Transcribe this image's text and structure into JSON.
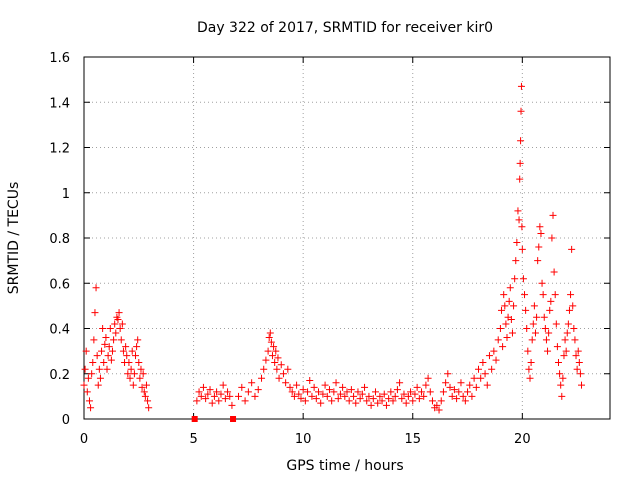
{
  "chart_data": {
    "type": "scatter",
    "title": "Day 322 of 2017, SRMTID for receiver kir0",
    "xlabel": "GPS time / hours",
    "ylabel": "SRMTID / TECUs",
    "xlim": [
      0,
      24
    ],
    "ylim": [
      0,
      1.6
    ],
    "grid": true,
    "xticks": [
      0,
      5,
      10,
      15,
      20
    ],
    "xtick_labels": [
      "0",
      "5",
      "10",
      "15",
      "20"
    ],
    "yticks": [
      0,
      0.2,
      0.4,
      0.6,
      0.8,
      1,
      1.2,
      1.4,
      1.6
    ],
    "ytick_labels": [
      "0",
      "0.2",
      "0.4",
      "0.6",
      "0.8",
      "1",
      "1.2",
      "1.4",
      "1.6"
    ],
    "marker": "plus",
    "color": "#ff0000",
    "series": [
      {
        "name": "SRMTID",
        "points": [
          [
            0.0,
            0.15
          ],
          [
            0.05,
            0.22
          ],
          [
            0.1,
            0.3
          ],
          [
            0.15,
            0.12
          ],
          [
            0.2,
            0.18
          ],
          [
            0.25,
            0.08
          ],
          [
            0.3,
            0.05
          ],
          [
            0.35,
            0.2
          ],
          [
            0.4,
            0.25
          ],
          [
            0.45,
            0.35
          ],
          [
            0.5,
            0.47
          ],
          [
            0.55,
            0.58
          ],
          [
            0.6,
            0.28
          ],
          [
            0.65,
            0.15
          ],
          [
            0.7,
            0.22
          ],
          [
            0.75,
            0.18
          ],
          [
            0.8,
            0.3
          ],
          [
            0.85,
            0.4
          ],
          [
            0.9,
            0.25
          ],
          [
            0.95,
            0.33
          ],
          [
            1.0,
            0.36
          ],
          [
            1.05,
            0.22
          ],
          [
            1.1,
            0.28
          ],
          [
            1.15,
            0.32
          ],
          [
            1.2,
            0.4
          ],
          [
            1.25,
            0.26
          ],
          [
            1.3,
            0.3
          ],
          [
            1.35,
            0.35
          ],
          [
            1.4,
            0.42
          ],
          [
            1.45,
            0.38
          ],
          [
            1.5,
            0.45
          ],
          [
            1.55,
            0.44
          ],
          [
            1.6,
            0.47
          ],
          [
            1.65,
            0.4
          ],
          [
            1.7,
            0.35
          ],
          [
            1.75,
            0.42
          ],
          [
            1.8,
            0.3
          ],
          [
            1.85,
            0.25
          ],
          [
            1.9,
            0.32
          ],
          [
            1.95,
            0.28
          ],
          [
            2.0,
            0.2
          ],
          [
            2.05,
            0.25
          ],
          [
            2.1,
            0.18
          ],
          [
            2.15,
            0.22
          ],
          [
            2.2,
            0.3
          ],
          [
            2.25,
            0.15
          ],
          [
            2.3,
            0.2
          ],
          [
            2.35,
            0.28
          ],
          [
            2.4,
            0.32
          ],
          [
            2.45,
            0.35
          ],
          [
            2.5,
            0.25
          ],
          [
            2.55,
            0.18
          ],
          [
            2.6,
            0.22
          ],
          [
            2.65,
            0.14
          ],
          [
            2.7,
            0.2
          ],
          [
            2.75,
            0.12
          ],
          [
            2.8,
            0.1
          ],
          [
            2.85,
            0.15
          ],
          [
            2.9,
            0.08
          ],
          [
            2.95,
            0.05
          ],
          [
            5.05,
            0.0
          ],
          [
            6.8,
            0.0
          ],
          [
            5.15,
            0.08
          ],
          [
            5.25,
            0.12
          ],
          [
            5.35,
            0.1
          ],
          [
            5.45,
            0.14
          ],
          [
            5.55,
            0.09
          ],
          [
            5.65,
            0.11
          ],
          [
            5.75,
            0.13
          ],
          [
            5.85,
            0.07
          ],
          [
            5.95,
            0.1
          ],
          [
            6.05,
            0.12
          ],
          [
            6.15,
            0.08
          ],
          [
            6.25,
            0.11
          ],
          [
            6.35,
            0.15
          ],
          [
            6.45,
            0.09
          ],
          [
            6.55,
            0.12
          ],
          [
            6.65,
            0.1
          ],
          [
            6.75,
            0.06
          ],
          [
            7.05,
            0.1
          ],
          [
            7.2,
            0.14
          ],
          [
            7.35,
            0.08
          ],
          [
            7.5,
            0.12
          ],
          [
            7.65,
            0.16
          ],
          [
            7.8,
            0.1
          ],
          [
            7.95,
            0.13
          ],
          [
            8.1,
            0.18
          ],
          [
            8.2,
            0.22
          ],
          [
            8.3,
            0.26
          ],
          [
            8.4,
            0.3
          ],
          [
            8.45,
            0.36
          ],
          [
            8.5,
            0.38
          ],
          [
            8.55,
            0.34
          ],
          [
            8.6,
            0.28
          ],
          [
            8.65,
            0.32
          ],
          [
            8.7,
            0.25
          ],
          [
            8.75,
            0.3
          ],
          [
            8.8,
            0.22
          ],
          [
            8.85,
            0.27
          ],
          [
            8.9,
            0.18
          ],
          [
            9.0,
            0.24
          ],
          [
            9.1,
            0.2
          ],
          [
            9.2,
            0.16
          ],
          [
            9.3,
            0.22
          ],
          [
            9.4,
            0.14
          ],
          [
            9.5,
            0.12
          ],
          [
            9.6,
            0.1
          ],
          [
            9.7,
            0.15
          ],
          [
            9.8,
            0.11
          ],
          [
            9.9,
            0.09
          ],
          [
            10.0,
            0.13
          ],
          [
            10.1,
            0.08
          ],
          [
            10.2,
            0.12
          ],
          [
            10.3,
            0.17
          ],
          [
            10.4,
            0.1
          ],
          [
            10.5,
            0.14
          ],
          [
            10.6,
            0.09
          ],
          [
            10.7,
            0.12
          ],
          [
            10.8,
            0.07
          ],
          [
            10.9,
            0.11
          ],
          [
            11.0,
            0.15
          ],
          [
            11.1,
            0.1
          ],
          [
            11.2,
            0.13
          ],
          [
            11.3,
            0.08
          ],
          [
            11.4,
            0.12
          ],
          [
            11.5,
            0.16
          ],
          [
            11.6,
            0.09
          ],
          [
            11.7,
            0.11
          ],
          [
            11.8,
            0.14
          ],
          [
            11.9,
            0.1
          ],
          [
            12.0,
            0.12
          ],
          [
            12.1,
            0.08
          ],
          [
            12.2,
            0.13
          ],
          [
            12.3,
            0.1
          ],
          [
            12.4,
            0.07
          ],
          [
            12.5,
            0.12
          ],
          [
            12.6,
            0.09
          ],
          [
            12.7,
            0.11
          ],
          [
            12.8,
            0.14
          ],
          [
            12.9,
            0.08
          ],
          [
            13.0,
            0.1
          ],
          [
            13.1,
            0.06
          ],
          [
            13.2,
            0.09
          ],
          [
            13.3,
            0.12
          ],
          [
            13.4,
            0.07
          ],
          [
            13.5,
            0.1
          ],
          [
            13.6,
            0.08
          ],
          [
            13.7,
            0.11
          ],
          [
            13.8,
            0.06
          ],
          [
            13.9,
            0.09
          ],
          [
            14.0,
            0.12
          ],
          [
            14.1,
            0.08
          ],
          [
            14.2,
            0.1
          ],
          [
            14.3,
            0.13
          ],
          [
            14.4,
            0.16
          ],
          [
            14.5,
            0.09
          ],
          [
            14.6,
            0.11
          ],
          [
            14.7,
            0.07
          ],
          [
            14.8,
            0.1
          ],
          [
            14.9,
            0.12
          ],
          [
            15.0,
            0.08
          ],
          [
            15.1,
            0.11
          ],
          [
            15.2,
            0.14
          ],
          [
            15.3,
            0.09
          ],
          [
            15.4,
            0.12
          ],
          [
            15.5,
            0.1
          ],
          [
            15.6,
            0.15
          ],
          [
            15.7,
            0.18
          ],
          [
            15.8,
            0.12
          ],
          [
            15.9,
            0.08
          ],
          [
            16.0,
            0.05
          ],
          [
            16.1,
            0.06
          ],
          [
            16.2,
            0.04
          ],
          [
            16.3,
            0.08
          ],
          [
            16.4,
            0.12
          ],
          [
            16.5,
            0.16
          ],
          [
            16.6,
            0.2
          ],
          [
            16.7,
            0.14
          ],
          [
            16.8,
            0.1
          ],
          [
            16.9,
            0.13
          ],
          [
            17.0,
            0.09
          ],
          [
            17.1,
            0.12
          ],
          [
            17.2,
            0.16
          ],
          [
            17.3,
            0.1
          ],
          [
            17.4,
            0.08
          ],
          [
            17.5,
            0.12
          ],
          [
            17.6,
            0.15
          ],
          [
            17.7,
            0.1
          ],
          [
            17.8,
            0.18
          ],
          [
            17.9,
            0.14
          ],
          [
            18.0,
            0.22
          ],
          [
            18.1,
            0.18
          ],
          [
            18.2,
            0.25
          ],
          [
            18.3,
            0.2
          ],
          [
            18.4,
            0.15
          ],
          [
            18.5,
            0.28
          ],
          [
            18.6,
            0.22
          ],
          [
            18.7,
            0.3
          ],
          [
            18.8,
            0.26
          ],
          [
            18.9,
            0.35
          ],
          [
            19.0,
            0.4
          ],
          [
            19.05,
            0.48
          ],
          [
            19.1,
            0.32
          ],
          [
            19.15,
            0.55
          ],
          [
            19.2,
            0.5
          ],
          [
            19.25,
            0.42
          ],
          [
            19.3,
            0.36
          ],
          [
            19.35,
            0.45
          ],
          [
            19.4,
            0.52
          ],
          [
            19.45,
            0.58
          ],
          [
            19.5,
            0.44
          ],
          [
            19.55,
            0.38
          ],
          [
            19.6,
            0.5
          ],
          [
            19.65,
            0.62
          ],
          [
            19.7,
            0.7
          ],
          [
            19.75,
            0.78
          ],
          [
            19.8,
            0.92
          ],
          [
            19.85,
            0.88
          ],
          [
            19.88,
            1.06
          ],
          [
            19.9,
            1.13
          ],
          [
            19.92,
            1.23
          ],
          [
            19.94,
            1.36
          ],
          [
            19.96,
            1.47
          ],
          [
            19.98,
            0.85
          ],
          [
            20.0,
            0.75
          ],
          [
            20.05,
            0.62
          ],
          [
            20.1,
            0.55
          ],
          [
            20.15,
            0.48
          ],
          [
            20.2,
            0.4
          ],
          [
            20.25,
            0.3
          ],
          [
            20.3,
            0.22
          ],
          [
            20.35,
            0.18
          ],
          [
            20.4,
            0.25
          ],
          [
            20.45,
            0.35
          ],
          [
            20.5,
            0.42
          ],
          [
            20.55,
            0.5
          ],
          [
            20.6,
            0.38
          ],
          [
            20.65,
            0.45
          ],
          [
            20.7,
            0.7
          ],
          [
            20.75,
            0.76
          ],
          [
            20.8,
            0.85
          ],
          [
            20.85,
            0.82
          ],
          [
            20.9,
            0.6
          ],
          [
            20.95,
            0.55
          ],
          [
            21.0,
            0.45
          ],
          [
            21.05,
            0.4
          ],
          [
            21.1,
            0.35
          ],
          [
            21.15,
            0.3
          ],
          [
            21.2,
            0.38
          ],
          [
            21.25,
            0.48
          ],
          [
            21.3,
            0.52
          ],
          [
            21.35,
            0.8
          ],
          [
            21.4,
            0.9
          ],
          [
            21.45,
            0.65
          ],
          [
            21.5,
            0.55
          ],
          [
            21.55,
            0.42
          ],
          [
            21.6,
            0.32
          ],
          [
            21.65,
            0.25
          ],
          [
            21.7,
            0.2
          ],
          [
            21.75,
            0.15
          ],
          [
            21.8,
            0.1
          ],
          [
            21.85,
            0.18
          ],
          [
            21.9,
            0.28
          ],
          [
            21.95,
            0.35
          ],
          [
            22.0,
            0.3
          ],
          [
            22.05,
            0.38
          ],
          [
            22.1,
            0.42
          ],
          [
            22.15,
            0.48
          ],
          [
            22.2,
            0.55
          ],
          [
            22.25,
            0.75
          ],
          [
            22.3,
            0.5
          ],
          [
            22.35,
            0.4
          ],
          [
            22.4,
            0.35
          ],
          [
            22.45,
            0.28
          ],
          [
            22.5,
            0.22
          ],
          [
            22.55,
            0.3
          ],
          [
            22.6,
            0.25
          ],
          [
            22.65,
            0.2
          ],
          [
            22.7,
            0.15
          ]
        ]
      }
    ]
  }
}
